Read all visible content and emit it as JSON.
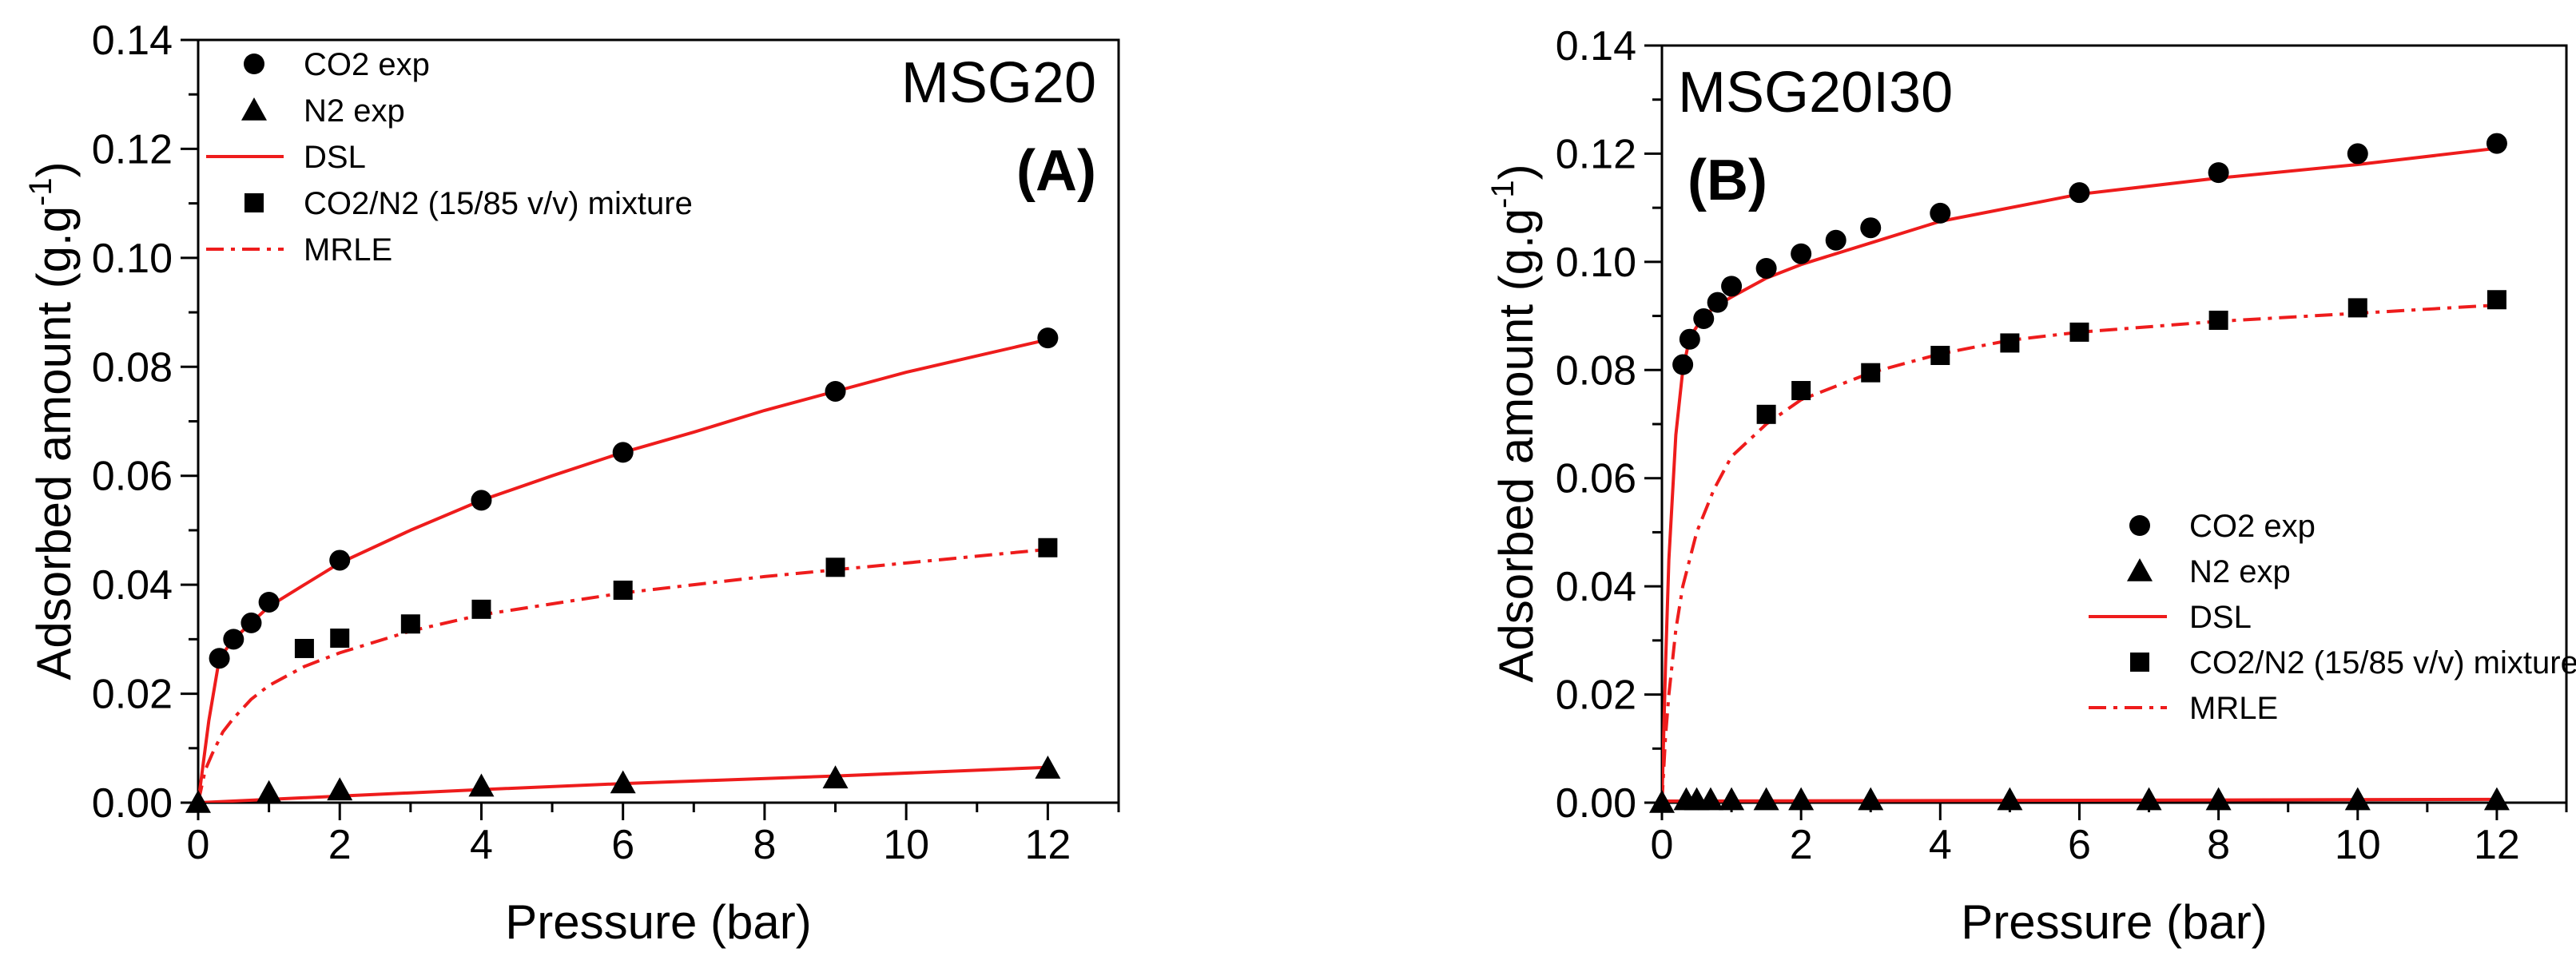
{
  "chart_data": [
    {
      "type": "scatter",
      "title": "MSG20",
      "panel_label": "(A)",
      "xlabel": "Pressure (bar)",
      "ylabel_main": "Adsorbed amount (g.g",
      "ylabel_sup": "-1",
      "ylabel_close": ")",
      "xlim": [
        0,
        13
      ],
      "ylim": [
        0,
        0.14
      ],
      "xticks": [
        0,
        2,
        4,
        6,
        8,
        10,
        12
      ],
      "yticks": [
        0.0,
        0.02,
        0.04,
        0.06,
        0.08,
        0.1,
        0.12,
        0.14
      ],
      "legend_position": "top-left",
      "series": [
        {
          "name": "CO2 exp",
          "kind": "circle",
          "color": "#000000",
          "x": [
            0.3,
            0.5,
            0.75,
            1.0,
            2.0,
            4.0,
            6.0,
            9.0,
            12.0
          ],
          "y": [
            0.0265,
            0.03,
            0.033,
            0.0368,
            0.0445,
            0.0555,
            0.0643,
            0.0755,
            0.0853
          ]
        },
        {
          "name": "N2 exp",
          "kind": "triangle",
          "color": "#000000",
          "x": [
            0.0,
            1.0,
            2.0,
            4.0,
            6.0,
            9.0,
            12.0
          ],
          "y": [
            0.0,
            0.0018,
            0.0023,
            0.003,
            0.0036,
            0.0045,
            0.0063
          ]
        },
        {
          "name": "DSL",
          "kind": "line",
          "color": "#ee1c1c",
          "x": [
            0.0,
            0.15,
            0.3,
            0.5,
            0.75,
            1.0,
            1.5,
            2.0,
            3.0,
            4.0,
            5.0,
            6.0,
            7.0,
            8.0,
            9.0,
            10.0,
            11.0,
            12.0
          ],
          "y": [
            0.0,
            0.015,
            0.0265,
            0.03,
            0.033,
            0.036,
            0.04,
            0.044,
            0.05,
            0.0555,
            0.06,
            0.0643,
            0.068,
            0.072,
            0.0755,
            0.079,
            0.082,
            0.085
          ]
        },
        {
          "name": "DSL-N2",
          "legend": false,
          "kind": "line",
          "color": "#ee1c1c",
          "x": [
            0.0,
            2.0,
            4.0,
            6.0,
            9.0,
            12.0
          ],
          "y": [
            0.0,
            0.0012,
            0.0024,
            0.0035,
            0.0049,
            0.0065
          ]
        },
        {
          "name": "CO2/N2 (15/85 v/v) mixture",
          "kind": "square",
          "color": "#000000",
          "x": [
            1.5,
            2.0,
            3.0,
            4.0,
            6.0,
            9.0,
            12.0
          ],
          "y": [
            0.0283,
            0.0302,
            0.0328,
            0.0355,
            0.039,
            0.0432,
            0.0468
          ]
        },
        {
          "name": "MRLE",
          "kind": "dashdot",
          "color": "#ee1c1c",
          "x": [
            0.0,
            0.1,
            0.2,
            0.35,
            0.5,
            0.75,
            1.0,
            1.5,
            2.0,
            3.0,
            4.0,
            6.0,
            8.0,
            10.0,
            12.0
          ],
          "y": [
            0.0,
            0.006,
            0.009,
            0.013,
            0.0155,
            0.019,
            0.0215,
            0.025,
            0.0275,
            0.0315,
            0.0345,
            0.0385,
            0.0415,
            0.044,
            0.0465
          ]
        }
      ]
    },
    {
      "type": "scatter",
      "title": "MSG20I30",
      "panel_label": "(B)",
      "xlabel": "Pressure (bar)",
      "ylabel_main": "Adsorbed amount (g.g",
      "ylabel_sup": "-1",
      "ylabel_close": ")",
      "xlim": [
        0,
        13
      ],
      "ylim": [
        0,
        0.14
      ],
      "xticks": [
        0,
        2,
        4,
        6,
        8,
        10,
        12
      ],
      "yticks": [
        0.0,
        0.02,
        0.04,
        0.06,
        0.08,
        0.1,
        0.12,
        0.14
      ],
      "legend_position": "center-right",
      "series": [
        {
          "name": "CO2 exp",
          "kind": "circle",
          "color": "#000000",
          "x": [
            0.3,
            0.4,
            0.6,
            0.8,
            1.0,
            1.5,
            2.0,
            2.5,
            3.0,
            4.0,
            6.0,
            8.0,
            10.0,
            12.0
          ],
          "y": [
            0.081,
            0.0857,
            0.0895,
            0.0925,
            0.0955,
            0.0988,
            0.1015,
            0.104,
            0.1063,
            0.109,
            0.1128,
            0.1165,
            0.12,
            0.1219
          ]
        },
        {
          "name": "N2 exp",
          "kind": "triangle",
          "color": "#000000",
          "x": [
            0.0,
            0.35,
            0.5,
            0.7,
            1.0,
            1.5,
            2.0,
            3.0,
            5.0,
            7.0,
            8.0,
            10.0,
            12.0
          ],
          "y": [
            0.0,
            0.0005,
            0.0005,
            0.0005,
            0.0005,
            0.0005,
            0.0005,
            0.0005,
            0.0005,
            0.0005,
            0.0005,
            0.0005,
            0.0005
          ]
        },
        {
          "name": "DSL",
          "kind": "line",
          "color": "#ee1c1c",
          "x": [
            0.0,
            0.05,
            0.1,
            0.2,
            0.3,
            0.4,
            0.6,
            0.8,
            1.0,
            1.5,
            2.0,
            3.0,
            4.0,
            6.0,
            8.0,
            10.0,
            12.0
          ],
          "y": [
            0.0,
            0.025,
            0.045,
            0.068,
            0.08,
            0.086,
            0.09,
            0.092,
            0.0935,
            0.097,
            0.0995,
            0.1035,
            0.1075,
            0.1125,
            0.1155,
            0.118,
            0.121
          ]
        },
        {
          "name": "DSL-N2",
          "legend": false,
          "kind": "line",
          "color": "#ee1c1c",
          "x": [
            0.0,
            12.0
          ],
          "y": [
            0.0003,
            0.0006
          ]
        },
        {
          "name": "CO2/N2 (15/85 v/v) mixture",
          "kind": "square",
          "color": "#000000",
          "x": [
            1.5,
            2.0,
            3.0,
            4.0,
            5.0,
            6.0,
            8.0,
            10.0,
            12.0
          ],
          "y": [
            0.0718,
            0.0762,
            0.0795,
            0.0827,
            0.085,
            0.087,
            0.0892,
            0.0915,
            0.093
          ]
        },
        {
          "name": "MRLE",
          "kind": "dashdot",
          "color": "#ee1c1c",
          "x": [
            0.0,
            0.05,
            0.1,
            0.2,
            0.3,
            0.5,
            0.75,
            1.0,
            1.5,
            2.0,
            3.0,
            4.0,
            5.0,
            6.0,
            8.0,
            10.0,
            12.0
          ],
          "y": [
            0.0,
            0.012,
            0.02,
            0.032,
            0.04,
            0.05,
            0.058,
            0.064,
            0.07,
            0.0745,
            0.0795,
            0.083,
            0.0855,
            0.087,
            0.089,
            0.0905,
            0.092
          ]
        }
      ]
    }
  ]
}
